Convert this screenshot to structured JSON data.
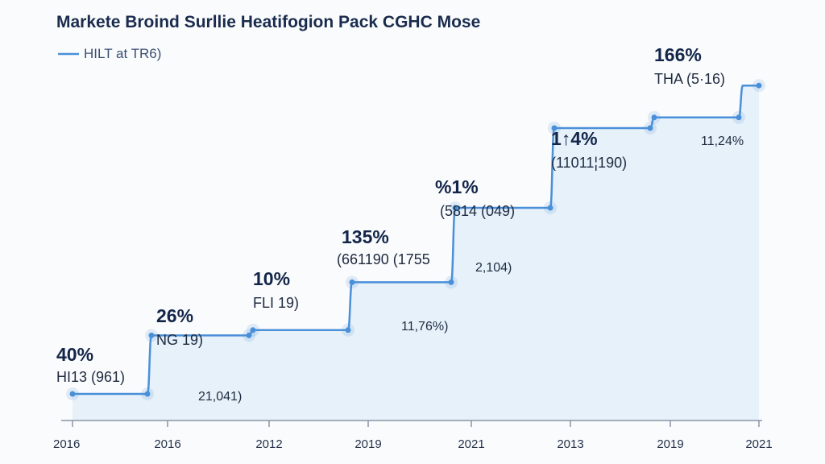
{
  "chart_data": {
    "type": "area",
    "title": "Markete Broind Surllie Heatifogion Pack CGHC Mose",
    "xlabel": "",
    "ylabel": "",
    "legend": {
      "label": "HILT at TR6)",
      "placement": "top-left"
    },
    "x_ticks": [
      "2016",
      "2016",
      "2012",
      "2019",
      "2021",
      "2013",
      "2019",
      "2021"
    ],
    "series": [
      {
        "color": "#4a90d9",
        "values": [
          5,
          16,
          17,
          26,
          40,
          55,
          57,
          63
        ]
      }
    ],
    "ylim": [
      0,
      70
    ],
    "grid": false,
    "point_labels": [
      {
        "pct": "40%",
        "sub": "HI13 (961)"
      },
      {
        "pct": "26%",
        "sub": "NG 19)"
      },
      {
        "pct": "10%",
        "sub": "FLI 19)"
      },
      {
        "pct": "135%",
        "sub": "(661190 (1755"
      },
      {
        "pct": "%1%",
        "sub": "(5814 (049)"
      },
      {
        "pct": "1↑4%",
        "sub": "(11011¦190)"
      },
      {
        "pct": "166%",
        "sub": "THA (5·16)"
      }
    ],
    "area_labels": [
      "21,041)",
      "11,76%)",
      "2,104)",
      "11,24%"
    ]
  }
}
